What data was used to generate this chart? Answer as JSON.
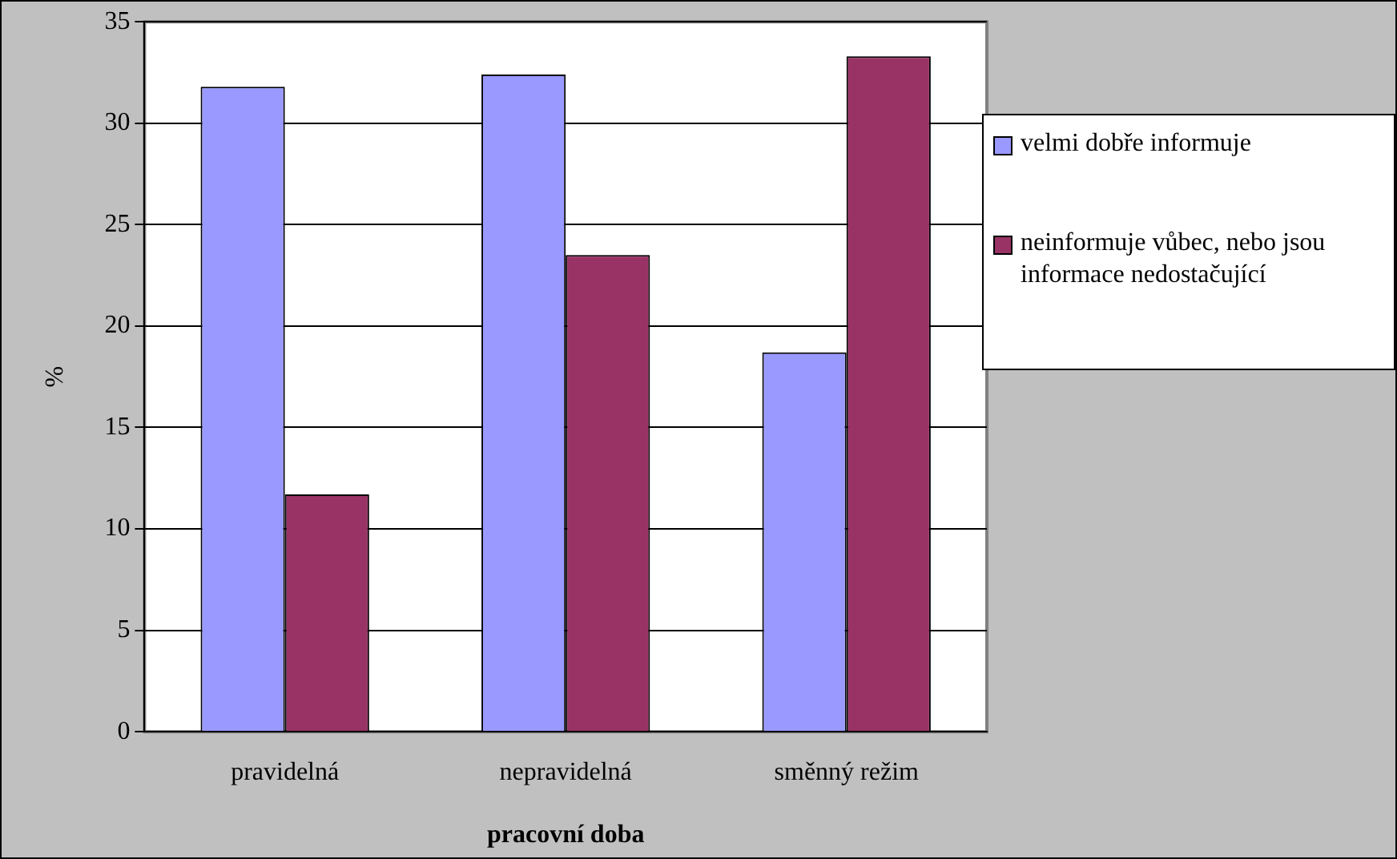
{
  "chart_data": {
    "type": "bar",
    "xlabel": "pracovní doba",
    "ylabel": "%",
    "categories": [
      "pravidelná",
      "nepravidelná",
      "směnný režim"
    ],
    "series": [
      {
        "name": "velmi dobře informuje",
        "color": "#9999ff",
        "values": [
          31.8,
          32.4,
          18.7
        ]
      },
      {
        "name": "neinformuje vůbec, nebo jsou informace nedostačující",
        "color": "#993366",
        "values": [
          11.7,
          23.5,
          33.3
        ]
      }
    ],
    "ylim": [
      0,
      35
    ],
    "yticks": [
      0,
      5,
      10,
      15,
      20,
      25,
      30,
      35
    ],
    "grid": "y",
    "legend": "right"
  }
}
